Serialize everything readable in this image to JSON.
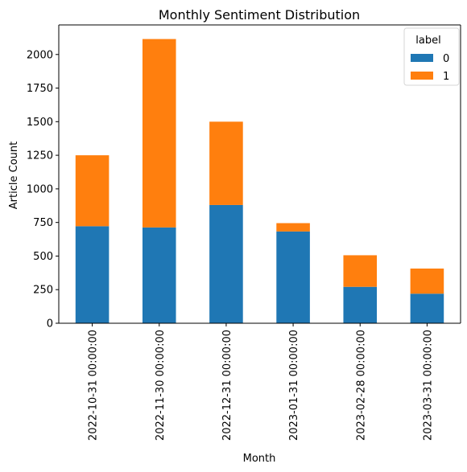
{
  "chart_data": {
    "type": "bar",
    "stacked": true,
    "title": "Monthly Sentiment Distribution",
    "xlabel": "Month",
    "ylabel": "Article Count",
    "categories": [
      "2022-10-31 00:00:00",
      "2022-11-30 00:00:00",
      "2022-12-31 00:00:00",
      "2023-01-31 00:00:00",
      "2023-02-28 00:00:00",
      "2023-03-31 00:00:00"
    ],
    "series": [
      {
        "name": "0",
        "color": "#1f77b4",
        "values": [
          722,
          713,
          880,
          683,
          271,
          220
        ]
      },
      {
        "name": "1",
        "color": "#ff7f0e",
        "values": [
          528,
          1402,
          620,
          62,
          235,
          187
        ]
      }
    ],
    "ylim": [
      0,
      2220
    ],
    "yticks": [
      0,
      250,
      500,
      750,
      1000,
      1250,
      1500,
      1750,
      2000
    ],
    "legend": {
      "title": "label",
      "position": "top-right"
    },
    "grid": false
  }
}
